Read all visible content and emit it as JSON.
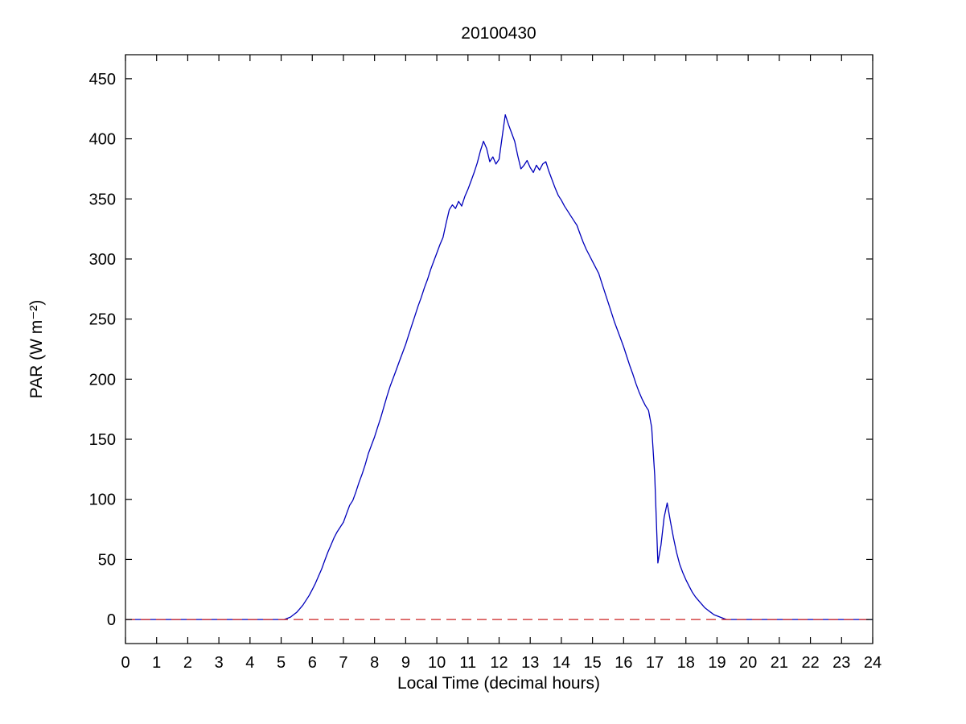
{
  "figure": {
    "background": "#ffffff"
  },
  "chart_data": {
    "type": "line",
    "title": "20100430",
    "xlabel": "Local Time (decimal hours)",
    "ylabel": "PAR (W m⁻²)",
    "xlim": [
      0,
      24
    ],
    "ylim": [
      -20,
      470
    ],
    "xticks": [
      0,
      1,
      2,
      3,
      4,
      5,
      6,
      7,
      8,
      9,
      10,
      11,
      12,
      13,
      14,
      15,
      16,
      17,
      18,
      19,
      20,
      21,
      22,
      23,
      24
    ],
    "yticks": [
      0,
      50,
      100,
      150,
      200,
      250,
      300,
      350,
      400,
      450
    ],
    "grid": false,
    "legend": "none",
    "series": [
      {
        "name": "par",
        "color": "#0000bb",
        "style": "solid",
        "x": [
          0,
          1,
          2,
          3,
          4,
          5.0,
          5.1,
          5.2,
          5.3,
          5.4,
          5.5,
          5.6,
          5.7,
          5.8,
          5.9,
          6.0,
          6.1,
          6.2,
          6.3,
          6.4,
          6.5,
          6.6,
          6.7,
          6.8,
          6.9,
          7.0,
          7.1,
          7.2,
          7.3,
          7.4,
          7.5,
          7.6,
          7.7,
          7.8,
          7.9,
          8.0,
          8.1,
          8.2,
          8.3,
          8.4,
          8.5,
          8.6,
          8.7,
          8.8,
          8.9,
          9.0,
          9.1,
          9.2,
          9.3,
          9.4,
          9.5,
          9.6,
          9.7,
          9.8,
          9.9,
          10.0,
          10.1,
          10.2,
          10.3,
          10.4,
          10.5,
          10.6,
          10.7,
          10.8,
          10.9,
          11.0,
          11.1,
          11.2,
          11.3,
          11.4,
          11.5,
          11.6,
          11.7,
          11.8,
          11.9,
          12.0,
          12.1,
          12.2,
          12.3,
          12.4,
          12.5,
          12.6,
          12.7,
          12.8,
          12.9,
          13.0,
          13.1,
          13.2,
          13.3,
          13.4,
          13.5,
          13.6,
          13.7,
          13.8,
          13.9,
          14.0,
          14.1,
          14.2,
          14.3,
          14.4,
          14.5,
          14.6,
          14.7,
          14.8,
          14.9,
          15.0,
          15.1,
          15.2,
          15.3,
          15.4,
          15.5,
          15.6,
          15.7,
          15.8,
          15.9,
          16.0,
          16.1,
          16.2,
          16.3,
          16.4,
          16.5,
          16.6,
          16.7,
          16.8,
          16.9,
          17.0,
          17.1,
          17.2,
          17.3,
          17.4,
          17.5,
          17.6,
          17.7,
          17.8,
          17.9,
          18.0,
          18.1,
          18.2,
          18.3,
          18.4,
          18.5,
          18.6,
          18.7,
          18.8,
          18.9,
          19.0,
          19.1,
          19.2,
          19.3,
          19.4,
          19.5,
          20,
          21,
          22,
          23,
          24
        ],
        "y": [
          0,
          0,
          0,
          0,
          0,
          0,
          0,
          1,
          2,
          4,
          6,
          9,
          12,
          16,
          20,
          25,
          30,
          36,
          42,
          49,
          56,
          62,
          68,
          73,
          77,
          81,
          88,
          95,
          99,
          106,
          114,
          121,
          129,
          138,
          145,
          152,
          160,
          168,
          177,
          186,
          194,
          201,
          208,
          215,
          222,
          229,
          237,
          245,
          253,
          261,
          268,
          276,
          283,
          291,
          298,
          305,
          312,
          318,
          330,
          341,
          345,
          342,
          348,
          344,
          352,
          358,
          365,
          372,
          380,
          390,
          398,
          392,
          381,
          385,
          379,
          383,
          402,
          420,
          412,
          405,
          398,
          386,
          375,
          378,
          382,
          376,
          372,
          378,
          374,
          379,
          381,
          373,
          366,
          359,
          353,
          349,
          344,
          340,
          336,
          332,
          328,
          321,
          314,
          308,
          303,
          298,
          293,
          288,
          280,
          272,
          264,
          256,
          248,
          241,
          234,
          227,
          219,
          211,
          204,
          196,
          189,
          183,
          178,
          174,
          160,
          120,
          47,
          62,
          85,
          97,
          82,
          68,
          56,
          46,
          39,
          33,
          28,
          23,
          19,
          16,
          13,
          10,
          8,
          6,
          4,
          3,
          2,
          1,
          0,
          0,
          0,
          0,
          0,
          0,
          0,
          0
        ]
      },
      {
        "name": "zero-line",
        "color": "#cc2222",
        "style": "dashed",
        "x": [
          0,
          24
        ],
        "y": [
          0,
          0
        ]
      }
    ]
  }
}
